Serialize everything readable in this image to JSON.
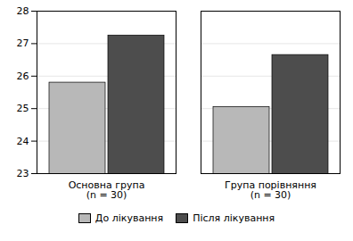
{
  "chart_data": {
    "type": "bar",
    "categories": [
      "Основна група\n(n = 30)",
      "Група порівняння\n(n = 30)"
    ],
    "series": [
      {
        "name": "До лікування",
        "color": "#b8b8b8",
        "values": [
          25.8,
          25.05
        ]
      },
      {
        "name": "Після лікування",
        "color": "#4d4d4d",
        "values": [
          27.25,
          26.65
        ]
      }
    ],
    "ylim": [
      23,
      28
    ],
    "yticks": [
      23,
      24,
      25,
      26,
      27,
      28
    ],
    "grid": true,
    "legend": "bottom"
  }
}
